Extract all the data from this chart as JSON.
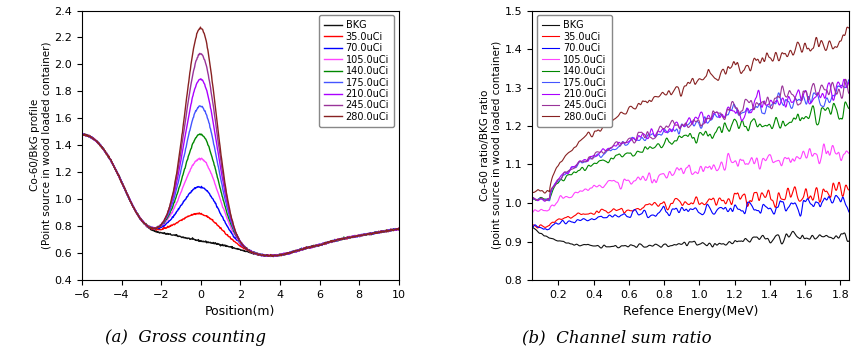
{
  "left": {
    "xlabel": "Position(m)",
    "ylabel": "Co-60/BkG profile\n(Point source in wood loaded container)",
    "xlim": [
      -6,
      10
    ],
    "ylim": [
      0.4,
      2.4
    ],
    "yticks": [
      0.4,
      0.6,
      0.8,
      1.0,
      1.2,
      1.4,
      1.6,
      1.8,
      2.0,
      2.2,
      2.4
    ],
    "xticks": [
      -6,
      -4,
      -2,
      0,
      2,
      4,
      6,
      8,
      10
    ],
    "series": [
      {
        "label": "BKG",
        "color": "#111111",
        "peak_amp": 0.0,
        "sigma": 0.9,
        "base": 0.68
      },
      {
        "label": "35.0uCi",
        "color": "#ff0000",
        "peak_amp": 0.2,
        "sigma": 1.0,
        "base": 0.68
      },
      {
        "label": "70.0uCi",
        "color": "#0000ff",
        "peak_amp": 0.4,
        "sigma": 0.95,
        "base": 0.68
      },
      {
        "label": "105.0uCi",
        "color": "#ff44ff",
        "peak_amp": 0.61,
        "sigma": 0.9,
        "base": 0.68
      },
      {
        "label": "140.0uCi",
        "color": "#008800",
        "peak_amp": 0.79,
        "sigma": 0.87,
        "base": 0.68
      },
      {
        "label": "175.0uCi",
        "color": "#4455ff",
        "peak_amp": 1.0,
        "sigma": 0.84,
        "base": 0.68
      },
      {
        "label": "210.0uCi",
        "color": "#aa00ff",
        "peak_amp": 1.2,
        "sigma": 0.82,
        "base": 0.68
      },
      {
        "label": "245.0uCi",
        "color": "#993399",
        "peak_amp": 1.39,
        "sigma": 0.8,
        "base": 0.68
      },
      {
        "label": "280.0uCi",
        "color": "#882222",
        "peak_amp": 1.58,
        "sigma": 0.78,
        "base": 0.68
      }
    ]
  },
  "right": {
    "xlabel": "Refence Energy(MeV)",
    "ylabel": "Co-60 ratio/BKG ratio\n(point source in wood loaded container)",
    "xlim": [
      0.05,
      1.85
    ],
    "ylim": [
      0.8,
      1.5
    ],
    "yticks": [
      0.8,
      0.9,
      1.0,
      1.1,
      1.2,
      1.3,
      1.4,
      1.5
    ],
    "xticks": [
      0.2,
      0.4,
      0.6,
      0.8,
      1.0,
      1.2,
      1.4,
      1.6,
      1.8
    ],
    "series": [
      {
        "label": "BKG",
        "color": "#111111",
        "final": 0.92,
        "slope": 0.02,
        "noise": 0.006
      },
      {
        "label": "35.0uCi",
        "color": "#ff0000",
        "final": 1.03,
        "slope": 0.09,
        "noise": 0.01
      },
      {
        "label": "70.0uCi",
        "color": "#0000ff",
        "final": 1.0,
        "slope": 0.065,
        "noise": 0.01
      },
      {
        "label": "105.0uCi",
        "color": "#ff44ff",
        "final": 1.13,
        "slope": 0.15,
        "noise": 0.012
      },
      {
        "label": "140.0uCi",
        "color": "#008800",
        "final": 1.24,
        "slope": 0.23,
        "noise": 0.012
      },
      {
        "label": "175.0uCi",
        "color": "#4455ff",
        "final": 1.29,
        "slope": 0.28,
        "noise": 0.012
      },
      {
        "label": "210.0uCi",
        "color": "#aa00ff",
        "final": 1.3,
        "slope": 0.29,
        "noise": 0.012
      },
      {
        "label": "245.0uCi",
        "color": "#993399",
        "final": 1.3,
        "slope": 0.29,
        "noise": 0.012
      },
      {
        "label": "280.0uCi",
        "color": "#882222",
        "final": 1.43,
        "slope": 0.4,
        "noise": 0.012
      }
    ]
  },
  "caption_left": "(a)  Gross counting",
  "caption_right": "(b)  Channel sum ratio",
  "caption_fontsize": 12
}
